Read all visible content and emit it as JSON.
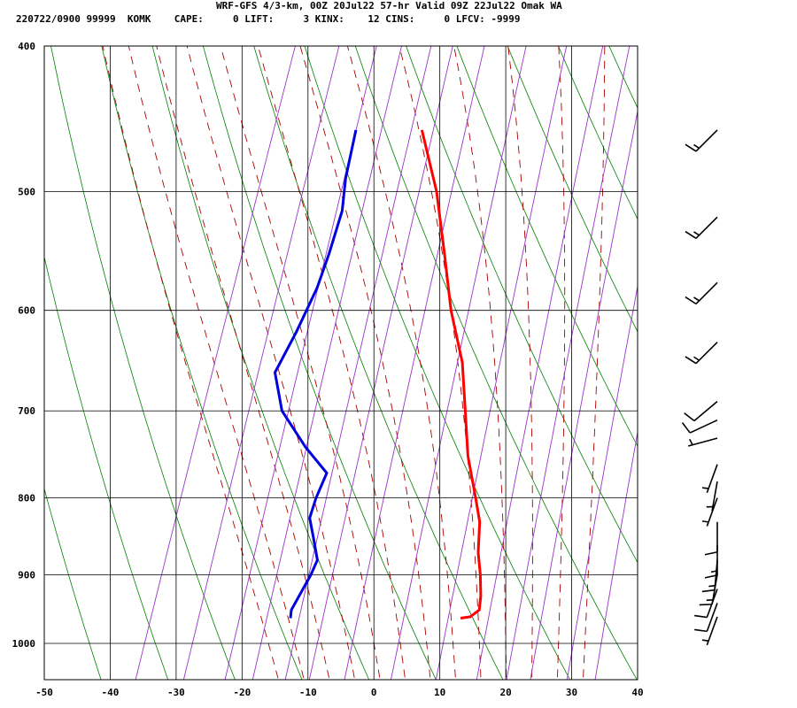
{
  "header": {
    "title": "WRF-GFS 4/3-km, 00Z 20Jul22 57-hr Valid 09Z 22Jul22 Omak WA",
    "info": "220722/0900 99999  KOMK    CAPE:     0 LIFT:     3 KINX:    12 CINS:     0 LFCV: -9999"
  },
  "chart_data": {
    "type": "line",
    "subtype": "skew-T log-p sounding",
    "xlim": [
      -50,
      40
    ],
    "ylim": [
      1040,
      400
    ],
    "y_scale": "log",
    "x_ticks": [
      -50,
      -40,
      -30,
      -20,
      -10,
      0,
      10,
      20,
      30,
      40
    ],
    "y_ticks": [
      400,
      500,
      600,
      700,
      800,
      900,
      1000
    ],
    "x_tick_labels": [
      "-50",
      "-40",
      "-30",
      "-20",
      "-10",
      "0",
      "10",
      "20",
      "30",
      "40"
    ],
    "y_tick_labels": [
      "400",
      "500",
      "600",
      "700",
      "800",
      "900",
      "1000"
    ],
    "grid": true,
    "series": [
      {
        "color": "#ff0000",
        "points": [
          [
            455,
            -20
          ],
          [
            500,
            -14.5
          ],
          [
            550,
            -10
          ],
          [
            600,
            -6
          ],
          [
            650,
            -1.5
          ],
          [
            700,
            1.5
          ],
          [
            750,
            4.3
          ],
          [
            800,
            7.7
          ],
          [
            830,
            9.6
          ],
          [
            870,
            11.0
          ],
          [
            900,
            12.5
          ],
          [
            930,
            13.7
          ],
          [
            950,
            14.2
          ],
          [
            960,
            13.2
          ],
          [
            962,
            11.8
          ]
        ]
      },
      {
        "color": "#0000dd",
        "points": [
          [
            455,
            -30
          ],
          [
            490,
            -29
          ],
          [
            515,
            -27.8
          ],
          [
            550,
            -27.5
          ],
          [
            580,
            -27.5
          ],
          [
            620,
            -28.3
          ],
          [
            660,
            -29.4
          ],
          [
            700,
            -26.3
          ],
          [
            740,
            -20.8
          ],
          [
            770,
            -16.2
          ],
          [
            800,
            -16.5
          ],
          [
            825,
            -16.4
          ],
          [
            850,
            -14.8
          ],
          [
            880,
            -13.0
          ],
          [
            900,
            -13.2
          ],
          [
            950,
            -14.3
          ],
          [
            962,
            -14.0
          ]
        ]
      }
    ],
    "background_lines": {
      "dry_adiabat_color": "#008000",
      "moist_adiabat_color": "#aa0000",
      "mixing_ratio_color": "#9933cc",
      "dry_adiabats_K": [
        230,
        240,
        250,
        260,
        270,
        280,
        290,
        300,
        310,
        320,
        330,
        340,
        350,
        360,
        370,
        380
      ],
      "moist_adiabats_C": [
        -16,
        -12,
        -8,
        -4,
        0,
        4,
        8,
        12,
        16,
        20,
        24,
        28,
        32
      ],
      "mixing_ratio_gkg": [
        0.2,
        0.4,
        0.7,
        1,
        1.5,
        2,
        3,
        5,
        8,
        12,
        16,
        20,
        28,
        36
      ]
    },
    "wind_barbs": [
      {
        "p": 455,
        "dir_deg": 225,
        "speed_kt": 15
      },
      {
        "p": 520,
        "dir_deg": 225,
        "speed_kt": 15
      },
      {
        "p": 575,
        "dir_deg": 225,
        "speed_kt": 15
      },
      {
        "p": 630,
        "dir_deg": 225,
        "speed_kt": 15
      },
      {
        "p": 690,
        "dir_deg": 230,
        "speed_kt": 10
      },
      {
        "p": 710,
        "dir_deg": 245,
        "speed_kt": 10
      },
      {
        "p": 730,
        "dir_deg": 255,
        "speed_kt": 5
      },
      {
        "p": 760,
        "dir_deg": 200,
        "speed_kt": 5
      },
      {
        "p": 780,
        "dir_deg": 190,
        "speed_kt": 5
      },
      {
        "p": 800,
        "dir_deg": 200,
        "speed_kt": 5
      },
      {
        "p": 830,
        "dir_deg": 180,
        "speed_kt": 10
      },
      {
        "p": 860,
        "dir_deg": 180,
        "speed_kt": 15
      },
      {
        "p": 880,
        "dir_deg": 185,
        "speed_kt": 15
      },
      {
        "p": 900,
        "dir_deg": 190,
        "speed_kt": 15
      },
      {
        "p": 920,
        "dir_deg": 200,
        "speed_kt": 10
      },
      {
        "p": 940,
        "dir_deg": 200,
        "speed_kt": 10
      },
      {
        "p": 960,
        "dir_deg": 200,
        "speed_kt": 5
      }
    ]
  }
}
